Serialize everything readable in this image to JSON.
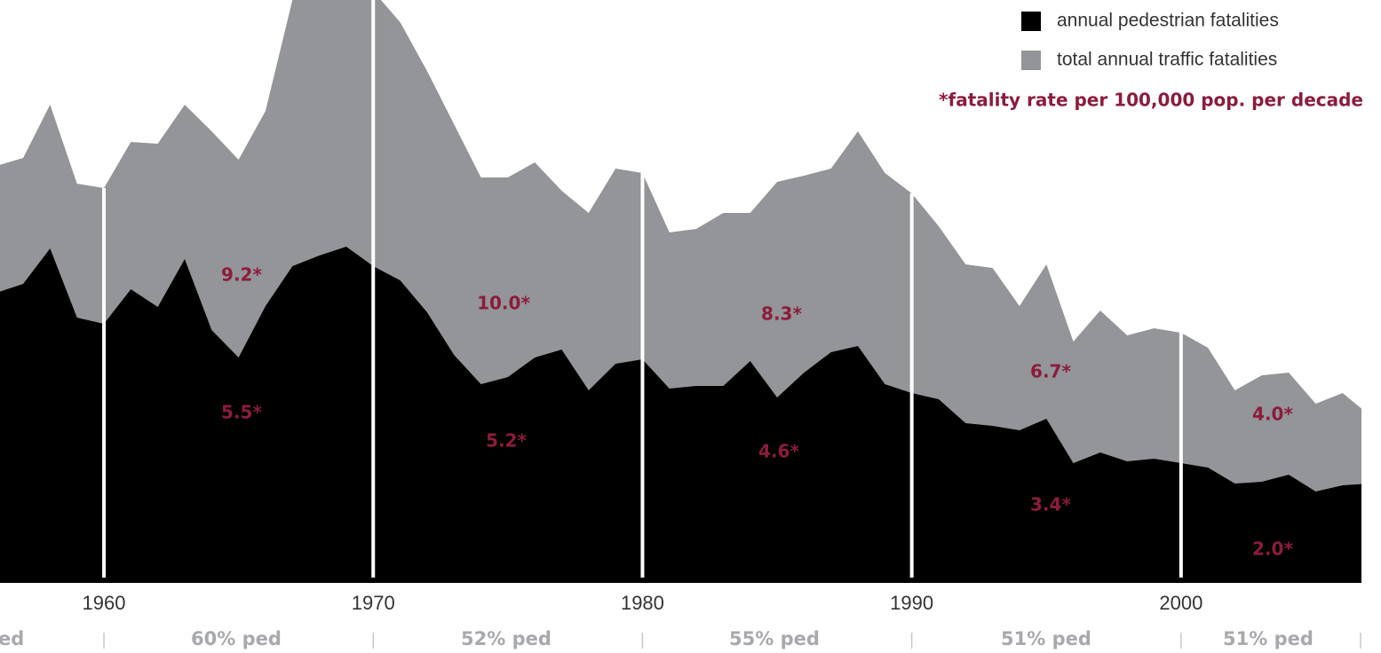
{
  "chart_data": {
    "type": "area",
    "x": [
      1956,
      1957,
      1958,
      1959,
      1960,
      1961,
      1962,
      1963,
      1964,
      1965,
      1966,
      1967,
      1968,
      1969,
      1970,
      1971,
      1972,
      1973,
      1974,
      1975,
      1976,
      1977,
      1978,
      1979,
      1980,
      1981,
      1982,
      1983,
      1984,
      1985,
      1986,
      1987,
      1988,
      1989,
      1990,
      1991,
      1992,
      1993,
      1994,
      1995,
      1996,
      1997,
      1998,
      1999,
      2000,
      2001,
      2002,
      2003,
      2004,
      2005,
      2006,
      2007
    ],
    "series": [
      {
        "name": "annual pedestrian fatalities",
        "color": "#000000",
        "values": [
          327,
          337,
          377,
          299,
          292,
          331,
          311,
          365,
          285,
          254,
          312,
          357,
          369,
          379,
          357,
          341,
          305,
          257,
          224,
          232,
          254,
          263,
          217,
          247,
          252,
          219,
          222,
          222,
          250,
          209,
          237,
          260,
          267,
          224,
          214,
          207,
          180,
          177,
          172,
          185,
          135,
          147,
          137,
          140,
          135,
          130,
          112,
          114,
          122,
          103,
          110,
          112
        ]
      },
      {
        "name": "total annual traffic fatalities",
        "color": "#939598",
        "values": [
          470,
          479,
          539,
          450,
          445,
          497,
          495,
          539,
          509,
          477,
          532,
          657,
          697,
          697,
          667,
          632,
          577,
          517,
          457,
          457,
          474,
          442,
          417,
          467,
          462,
          395,
          399,
          417,
          417,
          452,
          459,
          467,
          509,
          462,
          439,
          402,
          359,
          355,
          312,
          359,
          272,
          307,
          279,
          287,
          282,
          265,
          217,
          234,
          237,
          202,
          214,
          189
        ]
      }
    ],
    "xlim": [
      1956.14,
      2006.7
    ],
    "xticks": [
      1960,
      1970,
      1980,
      1990,
      2000
    ],
    "ylim": [
      0,
      657
    ],
    "annotations": [
      "9.2*",
      "5.5*",
      "10.0*",
      "5.2*",
      "8.3*",
      "4.6*",
      "6.7*",
      "3.4*",
      "4.0*",
      "2.0*"
    ],
    "decade_labels": [
      "ed",
      "60% ped",
      "52% ped",
      "55% ped",
      "51% ped",
      "51% ped"
    ],
    "footnote": "*fatality rate per 100,000 pop. per decade",
    "annotation_color": "#8c1c3c"
  }
}
